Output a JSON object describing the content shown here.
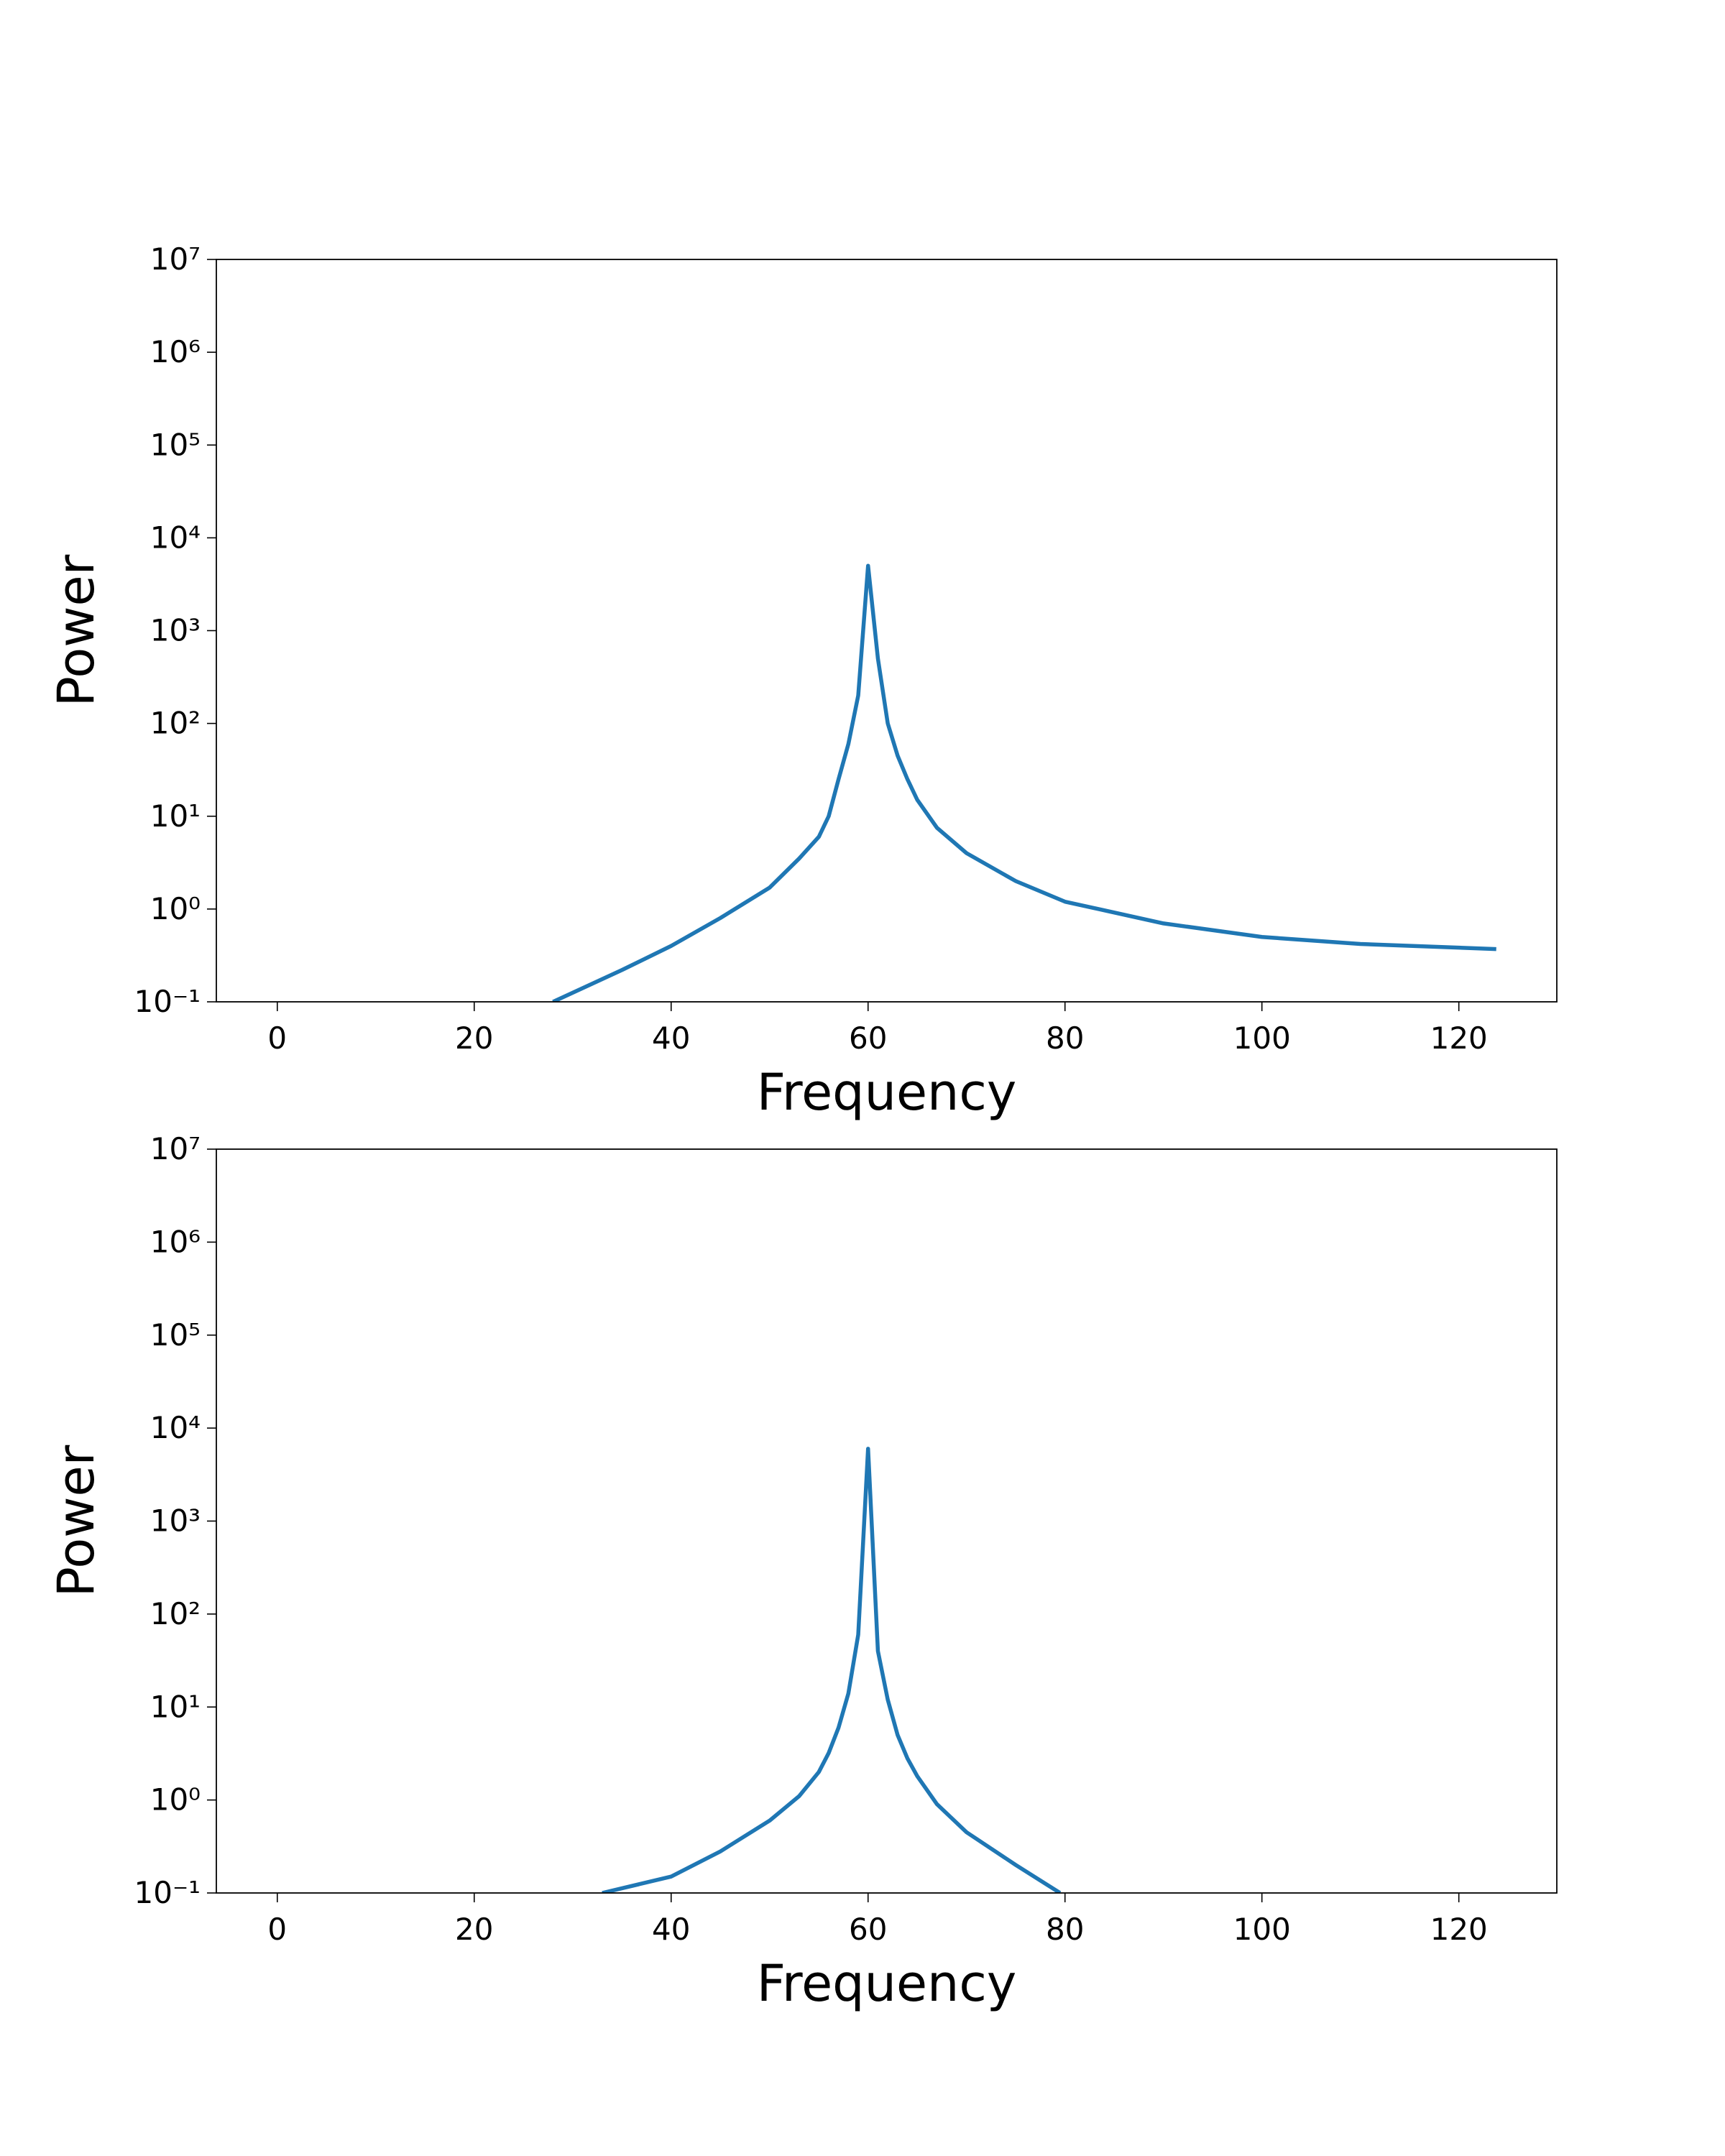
{
  "chart_data": [
    {
      "type": "line",
      "xlabel": "Frequency",
      "ylabel": "Power",
      "yscale": "log",
      "xlim": [
        -6.19,
        129.95
      ],
      "ylim": [
        0.1,
        10000000
      ],
      "xticks": [
        0,
        20,
        40,
        60,
        80,
        100,
        120
      ],
      "yticks": [
        {
          "value": 0.1,
          "label": "10⁻¹"
        },
        {
          "value": 1,
          "label": "10⁰"
        },
        {
          "value": 10,
          "label": "10¹"
        },
        {
          "value": 100,
          "label": "10²"
        },
        {
          "value": 1000,
          "label": "10³"
        },
        {
          "value": 10000,
          "label": "10⁴"
        },
        {
          "value": 100000,
          "label": "10⁵"
        },
        {
          "value": 1000000,
          "label": "10⁶"
        },
        {
          "value": 10000000,
          "label": "10⁷"
        }
      ],
      "x": [
        28,
        35,
        40,
        45,
        50,
        53,
        55,
        56,
        57,
        58,
        59,
        60,
        61,
        62,
        63,
        64,
        65,
        67,
        70,
        75,
        80,
        90,
        100,
        110,
        123.8
      ],
      "series": [
        {
          "color": "#1f77b4",
          "values": [
            0.1,
            0.22,
            0.4,
            0.8,
            1.7,
            3.5,
            6,
            10,
            25,
            60,
            200,
            5000,
            500,
            100,
            45,
            25,
            15,
            7.5,
            4,
            2,
            1.2,
            0.7,
            0.5,
            0.42,
            0.37
          ]
        }
      ]
    },
    {
      "type": "line",
      "xlabel": "Frequency",
      "ylabel": "Power",
      "yscale": "log",
      "xlim": [
        -6.19,
        129.95
      ],
      "ylim": [
        0.1,
        10000000
      ],
      "xticks": [
        0,
        20,
        40,
        60,
        80,
        100,
        120
      ],
      "yticks": [
        {
          "value": 0.1,
          "label": "10⁻¹"
        },
        {
          "value": 1,
          "label": "10⁰"
        },
        {
          "value": 10,
          "label": "10¹"
        },
        {
          "value": 100,
          "label": "10²"
        },
        {
          "value": 1000,
          "label": "10³"
        },
        {
          "value": 10000,
          "label": "10⁴"
        },
        {
          "value": 100000,
          "label": "10⁵"
        },
        {
          "value": 1000000,
          "label": "10⁶"
        },
        {
          "value": 10000000,
          "label": "10⁷"
        }
      ],
      "x": [
        33,
        40,
        45,
        50,
        53,
        55,
        56,
        57,
        58,
        59,
        60,
        61,
        62,
        63,
        64,
        65,
        67,
        70,
        75,
        79.5
      ],
      "series": [
        {
          "color": "#1f77b4",
          "values": [
            0.1,
            0.15,
            0.28,
            0.6,
            1.1,
            2,
            3.2,
            6,
            14,
            60,
            6000,
            40,
            12,
            5,
            2.8,
            1.8,
            0.9,
            0.45,
            0.2,
            0.1
          ]
        }
      ]
    }
  ]
}
